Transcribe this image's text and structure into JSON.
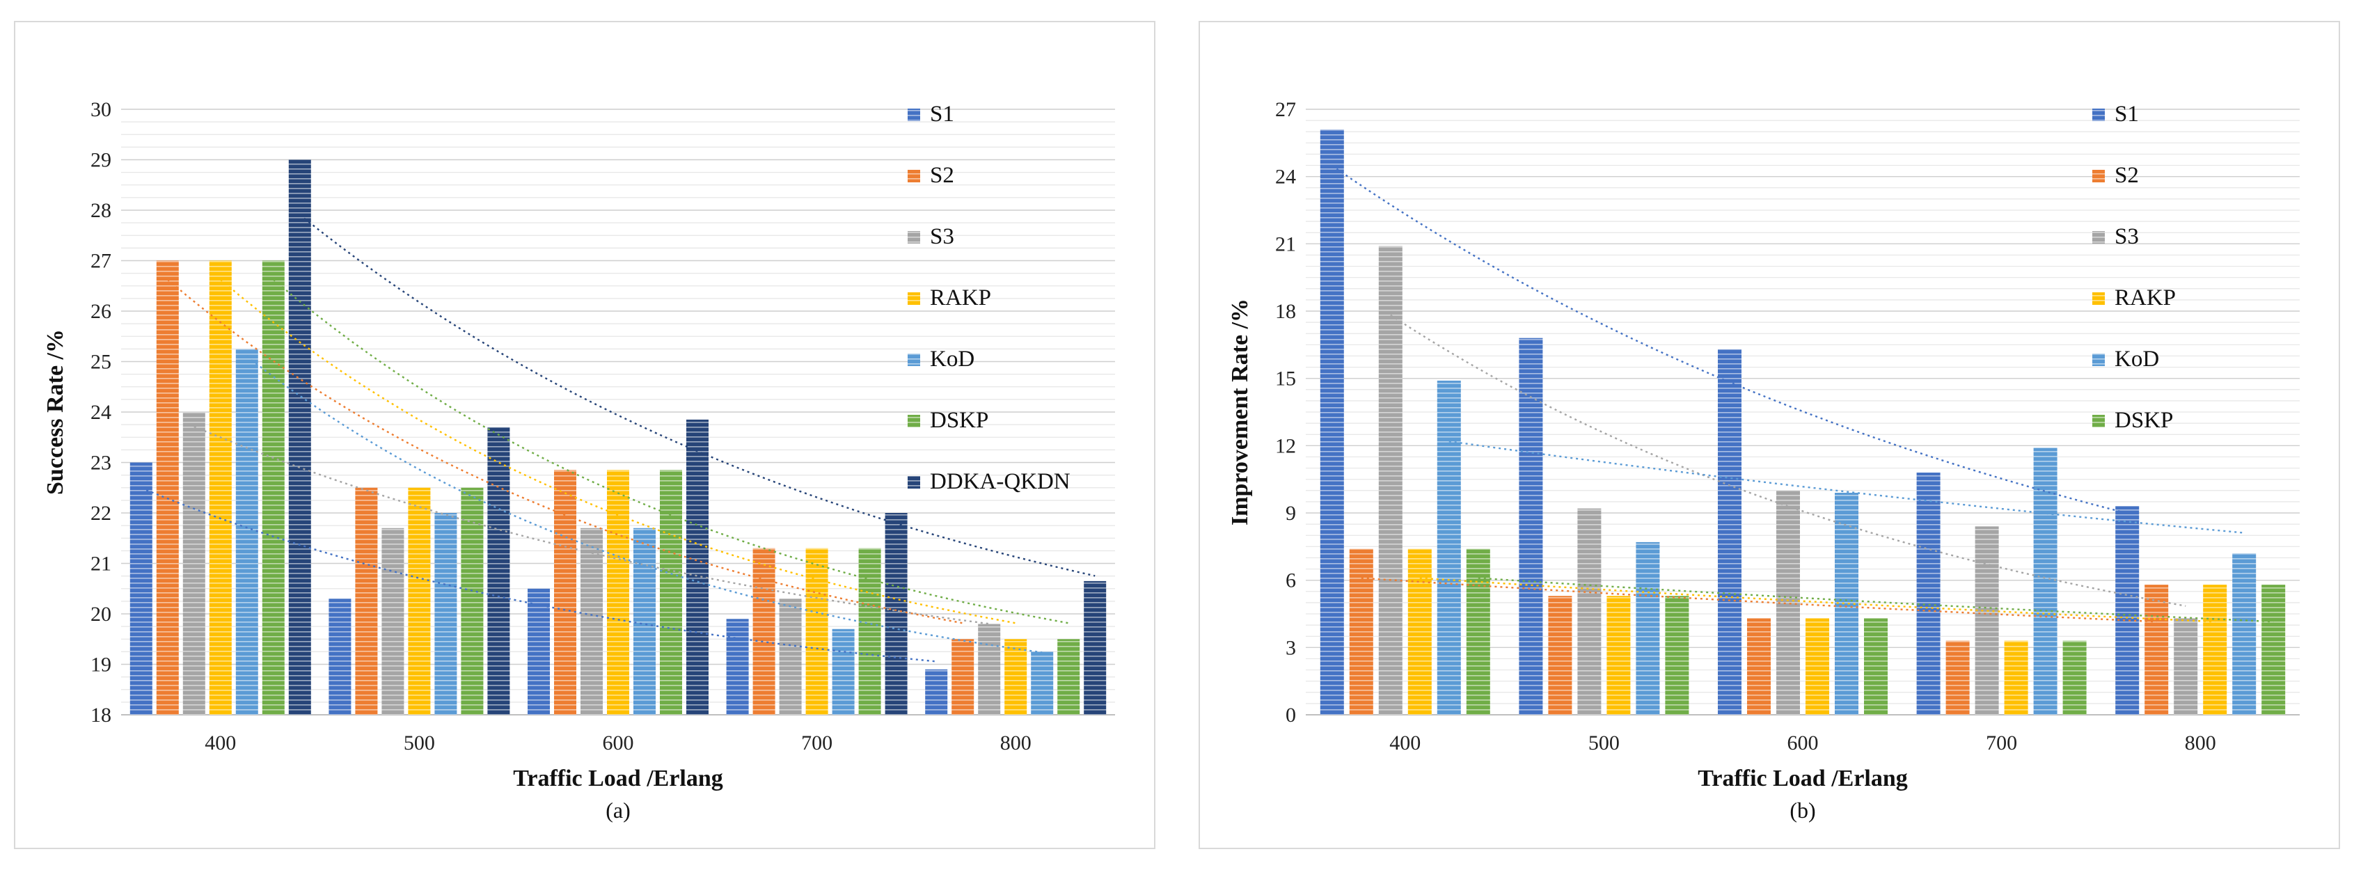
{
  "chart_data": [
    {
      "type": "bar",
      "panel_caption": "(a)",
      "xlabel": "Traffic Load /Erlang",
      "ylabel": "Success Rate /%",
      "categories": [
        "400",
        "500",
        "600",
        "700",
        "800"
      ],
      "ylim": [
        18,
        30
      ],
      "yticks": [
        "18",
        "19",
        "20",
        "21",
        "22",
        "23",
        "24",
        "25",
        "26",
        "27",
        "28",
        "29",
        "30"
      ],
      "grid": true,
      "legend_position": "right",
      "series": [
        {
          "name": "S1",
          "color": "#4472C4",
          "values": [
            23.0,
            20.3,
            20.5,
            19.9,
            18.9
          ]
        },
        {
          "name": "S2",
          "color": "#ED7D31",
          "values": [
            27.0,
            22.5,
            22.85,
            21.3,
            19.5
          ]
        },
        {
          "name": "S3",
          "color": "#A5A5A5",
          "values": [
            24.0,
            21.7,
            21.7,
            20.3,
            19.8
          ]
        },
        {
          "name": "RAKP",
          "color": "#FFC000",
          "values": [
            27.0,
            22.5,
            22.85,
            21.3,
            19.5
          ]
        },
        {
          "name": "KoD",
          "color": "#5B9BD5",
          "values": [
            25.25,
            22.0,
            21.7,
            19.7,
            19.25
          ]
        },
        {
          "name": "DSKP",
          "color": "#70AD47",
          "values": [
            27.0,
            22.5,
            22.85,
            21.3,
            19.5
          ]
        },
        {
          "name": "DDKA-QKDN",
          "color": "#264478",
          "values": [
            29.0,
            23.7,
            23.85,
            22.0,
            20.65
          ]
        }
      ]
    },
    {
      "type": "bar",
      "panel_caption": "(b)",
      "xlabel": "Traffic Load /Erlang",
      "ylabel": "Improvement Rate /%",
      "categories": [
        "400",
        "500",
        "600",
        "700",
        "800"
      ],
      "ylim": [
        0,
        27
      ],
      "yticks": [
        "0",
        "3",
        "6",
        "9",
        "12",
        "15",
        "18",
        "21",
        "24",
        "27"
      ],
      "grid": true,
      "legend_position": "right",
      "series": [
        {
          "name": "S1",
          "color": "#4472C4",
          "values": [
            26.1,
            16.8,
            16.3,
            10.8,
            9.3
          ]
        },
        {
          "name": "S2",
          "color": "#ED7D31",
          "values": [
            7.4,
            5.3,
            4.3,
            3.3,
            5.8
          ]
        },
        {
          "name": "S3",
          "color": "#A5A5A5",
          "values": [
            20.9,
            9.2,
            10.0,
            8.4,
            4.3
          ]
        },
        {
          "name": "RAKP",
          "color": "#FFC000",
          "values": [
            7.4,
            5.3,
            4.3,
            3.3,
            5.8
          ]
        },
        {
          "name": "KoD",
          "color": "#5B9BD5",
          "values": [
            14.9,
            7.7,
            9.9,
            11.9,
            7.2
          ]
        },
        {
          "name": "DSKP",
          "color": "#70AD47",
          "values": [
            7.4,
            5.3,
            4.3,
            3.3,
            5.8
          ]
        }
      ]
    }
  ]
}
